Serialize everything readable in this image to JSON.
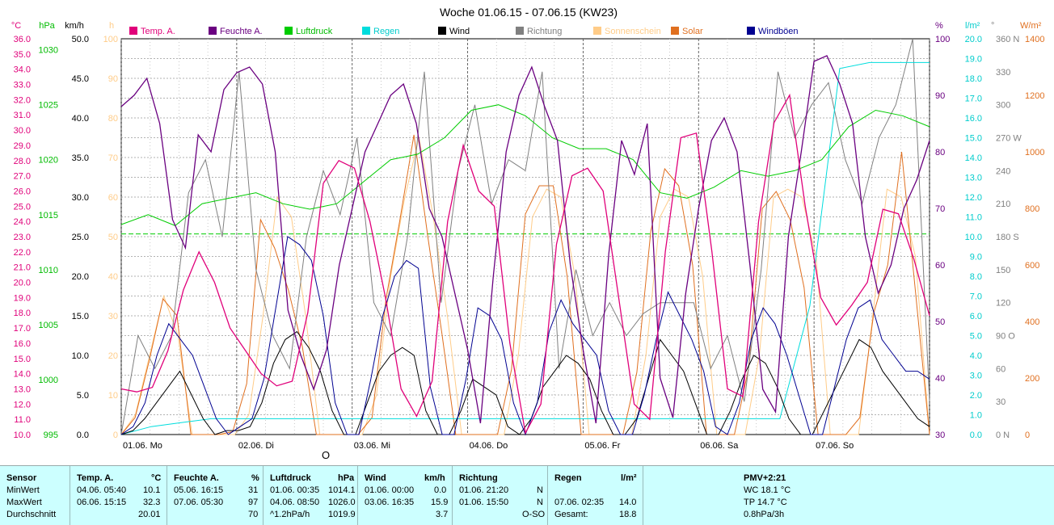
{
  "chart_data": {
    "type": "line",
    "title": "Woche 01.06.15 - 07.06.15 (KW23)",
    "x_ticks": [
      "01.06. Mo",
      "02.06. Di",
      "03.06. Mi",
      "04.06. Do",
      "05.06. Fr",
      "06.06. Sa",
      "07.06. So"
    ],
    "legend": [
      {
        "name": "Temp. A.",
        "color": "#e0007a"
      },
      {
        "name": "Feuchte A.",
        "color": "#6a0080"
      },
      {
        "name": "Luftdruck",
        "color": "#00cc00"
      },
      {
        "name": "Regen",
        "color": "#00dddd"
      },
      {
        "name": "Wind",
        "color": "#000000"
      },
      {
        "name": "Richtung",
        "color": "#808080"
      },
      {
        "name": "Sonnenschein",
        "color": "#ffcc88"
      },
      {
        "name": "Solar",
        "color": "#e07020"
      },
      {
        "name": "Windböen",
        "color": "#000090"
      }
    ],
    "axes": {
      "temp": {
        "unit": "°C",
        "color": "#e0007a",
        "min": 10.0,
        "max": 36.0,
        "ticks": [
          "10.0",
          "11.0",
          "12.0",
          "13.0",
          "14.0",
          "15.0",
          "16.0",
          "17.0",
          "18.0",
          "19.0",
          "20.0",
          "21.0",
          "22.0",
          "23.0",
          "24.0",
          "25.0",
          "26.0",
          "27.0",
          "28.0",
          "29.0",
          "30.0",
          "31.0",
          "32.0",
          "33.0",
          "34.0",
          "35.0",
          "36.0"
        ]
      },
      "pressure": {
        "unit": "hPa",
        "color": "#00bb00",
        "min": 995,
        "max": 1031,
        "ticks": [
          "995",
          "1000",
          "1005",
          "1010",
          "1015",
          "1020",
          "1025",
          "1030"
        ]
      },
      "wind": {
        "unit": "km/h",
        "color": "#000000",
        "min": 0,
        "max": 50,
        "ticks": [
          "0.0",
          "5.0",
          "10.0",
          "15.0",
          "20.0",
          "25.0",
          "30.0",
          "35.0",
          "40.0",
          "45.0",
          "50.0"
        ]
      },
      "sun": {
        "unit": "h",
        "color": "#ffcc88",
        "min": 0,
        "max": 100,
        "ticks": [
          "0",
          "10",
          "20",
          "30",
          "40",
          "50",
          "60",
          "70",
          "80",
          "90",
          "100"
        ]
      },
      "humidity": {
        "unit": "%",
        "color": "#6a0080",
        "min": 30,
        "max": 100,
        "ticks": [
          "30",
          "40",
          "50",
          "60",
          "70",
          "80",
          "90",
          "100"
        ]
      },
      "rain": {
        "unit": "l/m²",
        "color": "#00cccc",
        "min": 0,
        "max": 20,
        "ticks": [
          "0.0",
          "1.0",
          "2.0",
          "3.0",
          "4.0",
          "5.0",
          "6.0",
          "7.0",
          "8.0",
          "9.0",
          "10.0",
          "11.0",
          "12.0",
          "13.0",
          "14.0",
          "15.0",
          "16.0",
          "17.0",
          "18.0",
          "19.0",
          "20.0"
        ]
      },
      "direction": {
        "unit": "°",
        "color": "#808080",
        "min": 0,
        "max": 360,
        "ticks": [
          "0 N",
          "30",
          "60",
          "90 O",
          "120",
          "150",
          "180 S",
          "210",
          "240",
          "270 W",
          "300",
          "330",
          "360 N"
        ]
      },
      "solar": {
        "unit": "W/m²",
        "color": "#e07020",
        "min": 0,
        "max": 1400,
        "ticks": [
          "0",
          "200",
          "400",
          "600",
          "800",
          "1000",
          "1200",
          "1400"
        ]
      }
    },
    "series": [
      {
        "name": "Temp. A.",
        "axis": "temp",
        "values": [
          13,
          12.8,
          13.1,
          15.5,
          19.5,
          22,
          20,
          17,
          15.5,
          14,
          13.2,
          13.5,
          18,
          26.5,
          28,
          27.5,
          24,
          19,
          13,
          11.2,
          13.5,
          24,
          29,
          26,
          25,
          16,
          10.1,
          12,
          22.5,
          27,
          27.5,
          26,
          19,
          12,
          11,
          22,
          29.5,
          29.8,
          22,
          13,
          12.5,
          24,
          30.5,
          32.3,
          25,
          19,
          17.2,
          18.5,
          20,
          24.8,
          24.5,
          21.5,
          17.8
        ]
      },
      {
        "name": "Feuchte A.",
        "axis": "humidity",
        "values": [
          88,
          90,
          93,
          85,
          68,
          63,
          83,
          80,
          91,
          94,
          95,
          92,
          80,
          52,
          44,
          38,
          45,
          60,
          70,
          80,
          85,
          90,
          92,
          85,
          70,
          65,
          55,
          45,
          32,
          58,
          80,
          90,
          95,
          88,
          82,
          60,
          45,
          32,
          62,
          82,
          76,
          85,
          40,
          33,
          55,
          70,
          82,
          86,
          80,
          60,
          38,
          34,
          65,
          80,
          96,
          97,
          92,
          85,
          65,
          55,
          60,
          70,
          75,
          82
        ]
      },
      {
        "name": "Luftdruck",
        "axis": "pressure",
        "values": [
          1014.1,
          1015,
          1014,
          1016,
          1016.5,
          1017,
          1016,
          1015.5,
          1016,
          1018,
          1020,
          1020.5,
          1022,
          1024.5,
          1025,
          1024,
          1022,
          1021,
          1021,
          1020,
          1017,
          1016.5,
          1017.5,
          1019,
          1018.5,
          1019,
          1020,
          1023,
          1024.5,
          1024,
          1023
        ]
      },
      {
        "name": "Regen",
        "axis": "rain",
        "values": [
          0,
          0.4,
          0.6,
          0.8,
          0.8,
          0.8,
          0.8,
          0.8,
          0.8,
          0.8,
          0.8,
          0.8,
          0.8,
          0.8,
          0.8,
          0.8,
          0.8,
          0.8,
          0.8,
          0.8,
          0.8,
          0.8,
          0.8,
          6.5,
          18.5,
          18.8,
          18.8,
          18.8
        ]
      },
      {
        "name": "Wind",
        "axis": "wind",
        "values": [
          0,
          0.5,
          2,
          4,
          6,
          8,
          5,
          2,
          0,
          0.5,
          0.5,
          1,
          4,
          9,
          12,
          13,
          11,
          8,
          3,
          0,
          0,
          4,
          8,
          10,
          11,
          10,
          3,
          0,
          0,
          3,
          7,
          6,
          5,
          1,
          0,
          2,
          6,
          8,
          10,
          9,
          7,
          3,
          0,
          0,
          2,
          7,
          12,
          10,
          8,
          4,
          0,
          0,
          3,
          7,
          10,
          9,
          6,
          2,
          0,
          0,
          3,
          6,
          9,
          12,
          11,
          8,
          6,
          4,
          2,
          1
        ]
      },
      {
        "name": "Richtung",
        "axis": "direction",
        "values": [
          0,
          90,
          60,
          90,
          220,
          250,
          180,
          330,
          150,
          90,
          60,
          180,
          240,
          200,
          270,
          120,
          90,
          180,
          330,
          120,
          240,
          300,
          210,
          250,
          240,
          330,
          60,
          150,
          90,
          120,
          90,
          110,
          120,
          120,
          120,
          60,
          90,
          30,
          150,
          330,
          270,
          300,
          320,
          250,
          210,
          270,
          300,
          360,
          30
        ]
      },
      {
        "name": "Sonnenschein",
        "axis": "sun",
        "values": [
          0,
          5,
          20,
          35,
          25,
          0,
          0,
          0,
          0,
          5,
          30,
          60,
          55,
          30,
          0,
          0,
          0,
          0,
          10,
          40,
          60,
          75,
          55,
          30,
          0,
          0,
          0,
          0,
          20,
          55,
          62,
          60,
          40,
          0,
          0,
          0,
          0,
          20,
          55,
          62,
          60,
          40,
          0,
          0,
          0,
          20,
          60,
          62,
          60,
          45,
          0,
          0,
          0,
          30,
          62,
          60,
          45,
          0
        ]
      },
      {
        "name": "Solar",
        "axis": "solar",
        "values": [
          0,
          60,
          260,
          480,
          420,
          0,
          0,
          0,
          10,
          180,
          760,
          660,
          510,
          310,
          0,
          0,
          0,
          0,
          60,
          480,
          760,
          1060,
          700,
          360,
          0,
          0,
          0,
          0,
          230,
          780,
          880,
          880,
          560,
          0,
          0,
          0,
          0,
          220,
          720,
          940,
          880,
          600,
          0,
          0,
          0,
          230,
          800,
          860,
          760,
          520,
          0,
          0,
          0,
          60,
          430,
          600,
          1000,
          500,
          0
        ]
      },
      {
        "name": "Windböen",
        "axis": "wind",
        "values": [
          0,
          1,
          4,
          10,
          14,
          12,
          10,
          6,
          2,
          0,
          1,
          2,
          7,
          16,
          25,
          24,
          22,
          15,
          4,
          0,
          0,
          7,
          15,
          20,
          22,
          21,
          6,
          0,
          0,
          7,
          16,
          15,
          12,
          4,
          0,
          4,
          13,
          17,
          14,
          12,
          10,
          3,
          0,
          0,
          5,
          12,
          18,
          15,
          12,
          8,
          1,
          0,
          4,
          12,
          16,
          14,
          10,
          5,
          0,
          0,
          6,
          12,
          16,
          17,
          12,
          10,
          8,
          8,
          7
        ]
      }
    ]
  },
  "stats": {
    "header": {
      "sensor": "Sensor",
      "temp": "Temp. A.",
      "temp_unit": "°C",
      "hum": "Feuchte A.",
      "hum_unit": "%",
      "press": "Luftdruck",
      "press_unit": "hPa",
      "wind": "Wind",
      "wind_unit": "km/h",
      "dir": "Richtung",
      "rain": "Regen",
      "rain_unit": "l/m²",
      "pmv": "PMV+2:21"
    },
    "rows": [
      {
        "label": "MinWert",
        "temp_when": "04.06.  05:40",
        "temp": "10.1",
        "hum_when": "05.06.  16:15",
        "hum": "31",
        "press_when": "01.06.  00:35",
        "press": "1014.1",
        "wind_when": "01.06.  00:00",
        "wind": "0.0",
        "dir_when": "01.06.  21:20",
        "dir": "N",
        "rain_when": "",
        "rain": "",
        "extra": "WC 18.1 °C"
      },
      {
        "label": "MaxWert",
        "temp_when": "06.06.  15:15",
        "temp": "32.3",
        "hum_when": "07.06.  05:30",
        "hum": "97",
        "press_when": "04.06.  08:50",
        "press": "1026.0",
        "wind_when": "03.06.  16:35",
        "wind": "15.9",
        "dir_when": "01.06.  15:50",
        "dir": "N",
        "rain_when": "07.06.  02:35",
        "rain": "14.0",
        "extra": "TP 14.7 °C"
      },
      {
        "label": "Durchschnitt",
        "temp_when": "",
        "temp": "20.01",
        "hum_when": "",
        "hum": "70",
        "press_when": "^1.2hPa/h",
        "press": "1019.9",
        "wind_when": "",
        "wind": "3.7",
        "dir_when": "",
        "dir": "O-SO",
        "rain_when": "Gesamt:",
        "rain": "18.8",
        "extra": "0.8hPa/3h"
      }
    ]
  },
  "marker": "O"
}
